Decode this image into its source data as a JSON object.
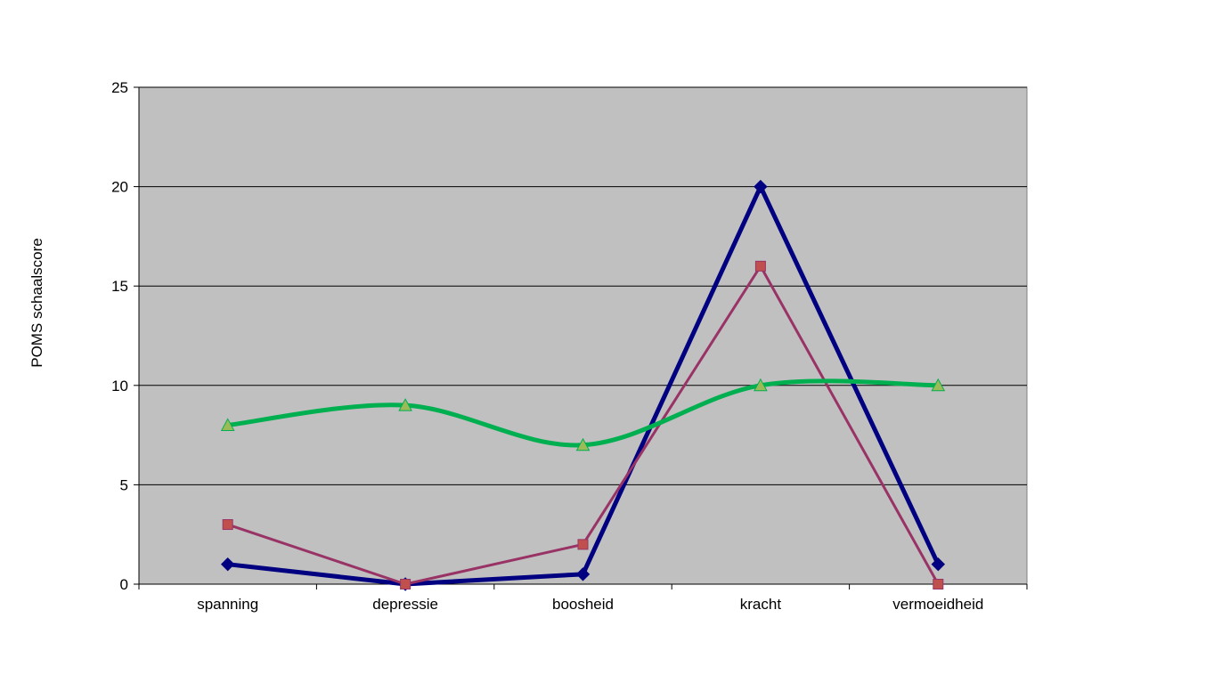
{
  "chart_data": {
    "type": "line",
    "title": "",
    "xlabel": "",
    "ylabel": "POMS schaalscore",
    "categories": [
      "spanning",
      "depressie",
      "boosheid",
      "kracht",
      "vermoeidheid"
    ],
    "ylim": [
      0,
      25
    ],
    "yticks": [
      0,
      5,
      10,
      15,
      20,
      25
    ],
    "grid": true,
    "legend": "none",
    "plot_background": "#c0c0c0",
    "series": [
      {
        "values": [
          1,
          0,
          0.5,
          20,
          1
        ],
        "color": "#000080",
        "marker": "diamond",
        "smooth": false
      },
      {
        "values": [
          3,
          0,
          2,
          16,
          0
        ],
        "color": "#993366",
        "marker": "square",
        "marker_color": "#c0504d",
        "smooth": false
      },
      {
        "values": [
          8,
          9,
          7,
          10,
          10
        ],
        "color": "#00b050",
        "marker": "triangle",
        "marker_color": "#9bbb59",
        "smooth": true
      }
    ]
  }
}
